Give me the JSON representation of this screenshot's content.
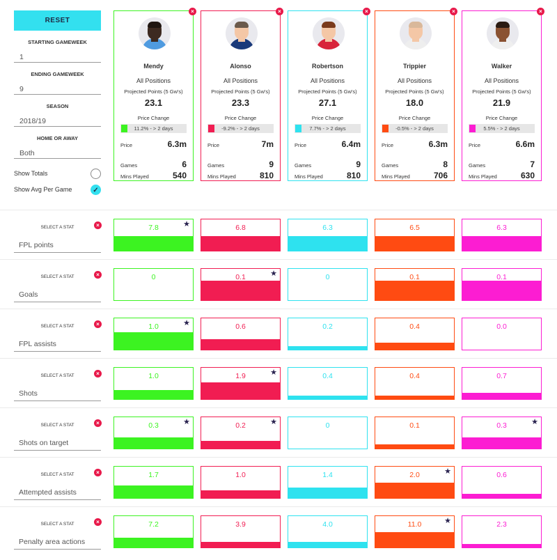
{
  "controls": {
    "reset_label": "RESET",
    "starting_gameweek_label": "STARTING GAMEWEEK",
    "starting_gameweek_value": "1",
    "ending_gameweek_label": "ENDING GAMEWEEK",
    "ending_gameweek_value": "9",
    "season_label": "SEASON",
    "season_value": "2018/19",
    "home_away_label": "HOME OR AWAY",
    "home_away_value": "Both",
    "show_totals_label": "Show Totals",
    "show_totals_checked": false,
    "show_avg_label": "Show Avg Per Game",
    "show_avg_checked": true,
    "checkmark": "✓"
  },
  "labels": {
    "positions": "All Positions",
    "projected": "Projected Points (5 Gw's)",
    "price_change": "Price Change",
    "price": "Price",
    "games": "Games",
    "mins_played": "Mins Played",
    "select_stat": "SELECT A STAT",
    "close_glyph": "×",
    "star_glyph": "★"
  },
  "players": [
    {
      "name": "Mendy",
      "color": "#3cf321",
      "projected": "23.1",
      "price_change": "11.2% - > 2 days",
      "price": "6.3m",
      "games": "6",
      "mins": "540",
      "skin": "#3d2a21",
      "hair": "#1f1511",
      "shirt": "#4f9be0"
    },
    {
      "name": "Alonso",
      "color": "#f11d52",
      "projected": "23.3",
      "price_change": "-9.2% - > 2 days",
      "price": "7m",
      "games": "9",
      "mins": "810",
      "skin": "#f4c7a6",
      "hair": "#6b5a4c",
      "shirt": "#1a3a7a"
    },
    {
      "name": "Robertson",
      "color": "#2ee2ef",
      "projected": "27.1",
      "price_change": "7.7% - > 2 days",
      "price": "6.4m",
      "games": "9",
      "mins": "810",
      "skin": "#f4c7a6",
      "hair": "#7a3a1c",
      "shirt": "#d8243a"
    },
    {
      "name": "Trippier",
      "color": "#ff4b12",
      "projected": "18.0",
      "price_change": "-0.5% - > 2 days",
      "price": "6.3m",
      "games": "8",
      "mins": "706",
      "skin": "#f4c7a6",
      "hair": "#d9b89a",
      "shirt": "#eeeeee"
    },
    {
      "name": "Walker",
      "color": "#fc1dd2",
      "projected": "21.9",
      "price_change": "5.5% - > 2 days",
      "price": "6.6m",
      "games": "7",
      "mins": "630",
      "skin": "#8a5232",
      "hair": "#2a1a12",
      "shirt": "#efefef"
    }
  ],
  "stats": [
    {
      "name": "FPL points",
      "values": [
        "7.8",
        "6.8",
        "6.3",
        "6.5",
        "6.3"
      ],
      "fill": [
        0.45,
        0.45,
        0.45,
        0.45,
        0.45
      ],
      "star": 0
    },
    {
      "name": "Goals",
      "values": [
        "0",
        "0.1",
        "0",
        "0.1",
        "0.1"
      ],
      "fill": [
        0,
        0.6,
        0,
        0.6,
        0.6
      ],
      "star": 1
    },
    {
      "name": "FPL assists",
      "values": [
        "1.0",
        "0.6",
        "0.2",
        "0.4",
        "0.0"
      ],
      "fill": [
        0.55,
        0.33,
        0.11,
        0.22,
        0
      ],
      "star": 0
    },
    {
      "name": "Shots",
      "values": [
        "1.0",
        "1.9",
        "0.4",
        "0.4",
        "0.7"
      ],
      "fill": [
        0.28,
        0.53,
        0.11,
        0.11,
        0.2
      ],
      "star": 1
    },
    {
      "name": "Shots on target",
      "values": [
        "0.3",
        "0.2",
        "0",
        "0.1",
        "0.3"
      ],
      "fill": [
        0.35,
        0.23,
        0,
        0.12,
        0.35
      ],
      "star": 0
    },
    {
      "name": "Attempted assists",
      "values": [
        "1.7",
        "1.0",
        "1.4",
        "2.0",
        "0.6"
      ],
      "fill": [
        0.4,
        0.24,
        0.33,
        0.48,
        0.14
      ],
      "star": 3
    },
    {
      "name": "Penalty area actions",
      "values": [
        "7.2",
        "3.9",
        "4.0",
        "11.0",
        "2.3"
      ],
      "fill": [
        0.31,
        0.17,
        0.17,
        0.47,
        0.1
      ],
      "star": 3
    }
  ],
  "star_extra": [
    [
      4,
      1
    ],
    [
      4,
      4
    ]
  ]
}
